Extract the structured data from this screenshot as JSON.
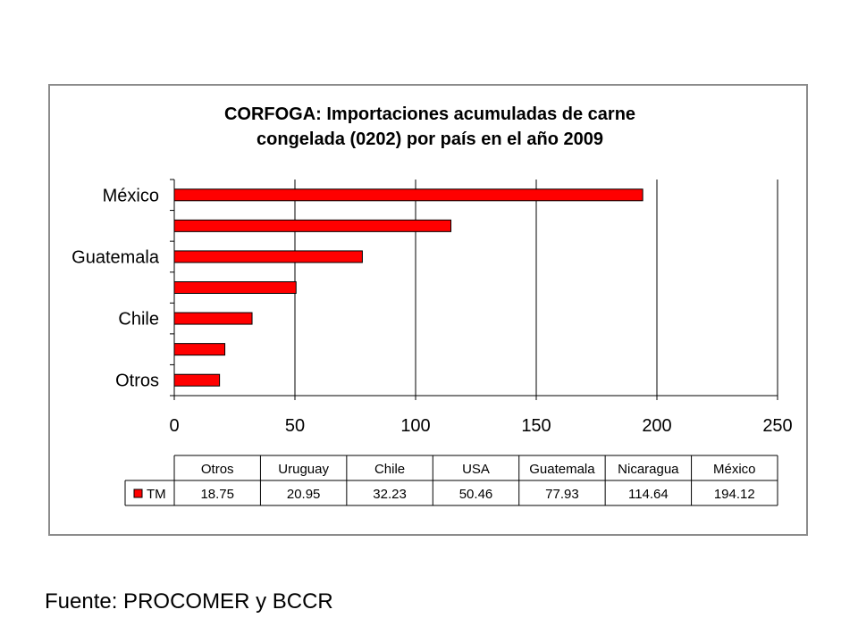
{
  "chart_data": {
    "type": "bar",
    "orientation": "horizontal",
    "title_lines": [
      "CORFOGA: Importaciones acumuladas de carne",
      "congelada (0202) por país en el año 2009"
    ],
    "categories": [
      "Otros",
      "Uruguay",
      "Chile",
      "USA",
      "Guatemala",
      "Nicaragua",
      "México"
    ],
    "shown_axis_labels": [
      "México",
      "Guatemala",
      "Chile",
      "Otros"
    ],
    "series": [
      {
        "name": "TM",
        "values": [
          18.75,
          20.95,
          32.23,
          50.46,
          77.93,
          114.64,
          194.12
        ],
        "color": "#ff0000"
      }
    ],
    "table_values": [
      "18.75",
      "20.95",
      "32.23",
      "50.46",
      "77.93",
      "114.64",
      "194.12"
    ],
    "xlim": [
      0,
      250
    ],
    "x_ticks": [
      0,
      50,
      100,
      150,
      200,
      250
    ],
    "x_tick_labels": [
      "0",
      "50",
      "100",
      "150",
      "200",
      "250"
    ],
    "grid": "vertical",
    "data_table": true
  },
  "source": "Fuente: PROCOMER y BCCR"
}
